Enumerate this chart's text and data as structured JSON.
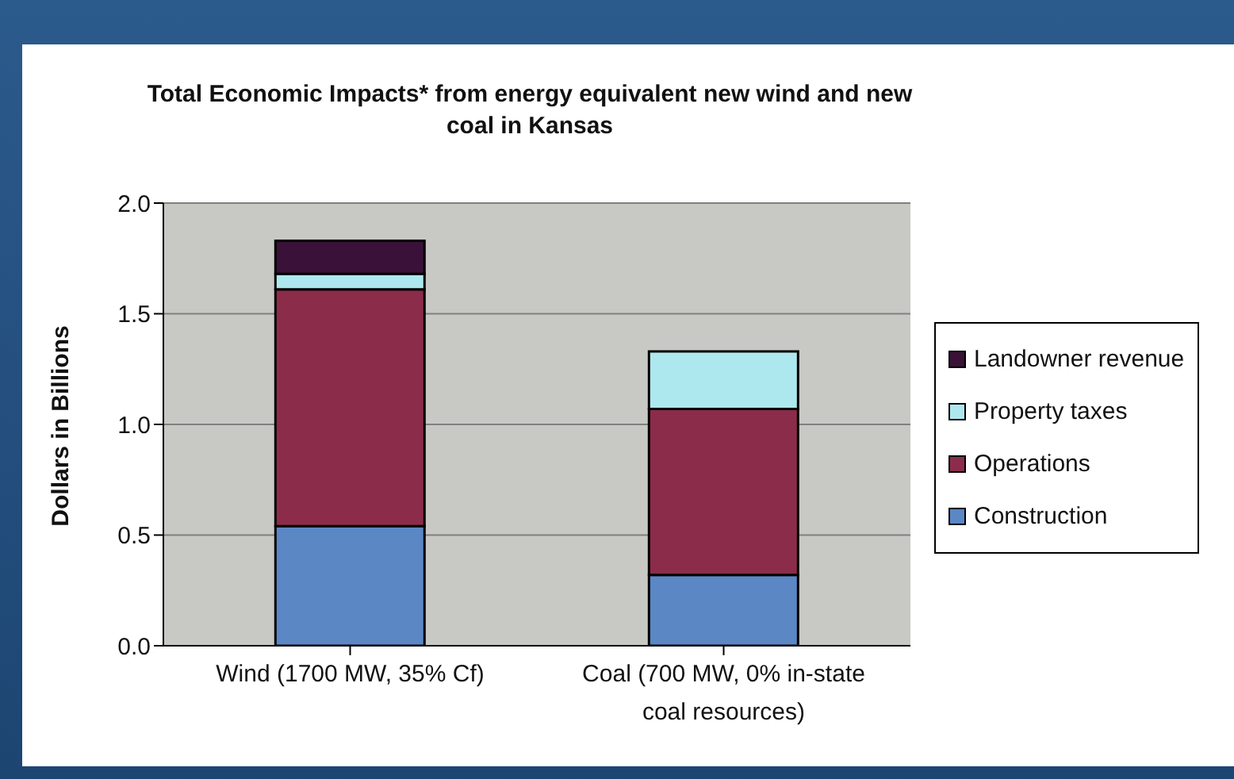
{
  "chart_data": {
    "type": "bar",
    "title": "Total Economic Impacts* from energy equivalent new wind and new coal in Kansas",
    "ylabel": "Dollars in Billions",
    "categories": [
      "Wind (1700 MW, 35% Cf)",
      "Coal (700 MW, 0% in-state coal resources)"
    ],
    "stacked": true,
    "ylim": [
      0,
      2
    ],
    "yticks": [
      {
        "value": 0,
        "label": "0.0"
      },
      {
        "value": 0.5,
        "label": "0.5"
      },
      {
        "value": 1,
        "label": "1.0"
      },
      {
        "value": 1.5,
        "label": "1.5"
      },
      {
        "value": 2,
        "label": "2.0"
      }
    ],
    "grid": "y",
    "legend": "right",
    "series": [
      {
        "name": "Construction",
        "color": "#5b87c5",
        "values": [
          0.54,
          0.32
        ]
      },
      {
        "name": "Operations",
        "color": "#8b2c4a",
        "values": [
          1.07,
          0.75
        ]
      },
      {
        "name": "Property taxes",
        "color": "#aee8ef",
        "values": [
          0.07,
          0.26
        ]
      },
      {
        "name": "Landowner revenue",
        "color": "#3a1138",
        "values": [
          0.15,
          0
        ]
      }
    ]
  }
}
